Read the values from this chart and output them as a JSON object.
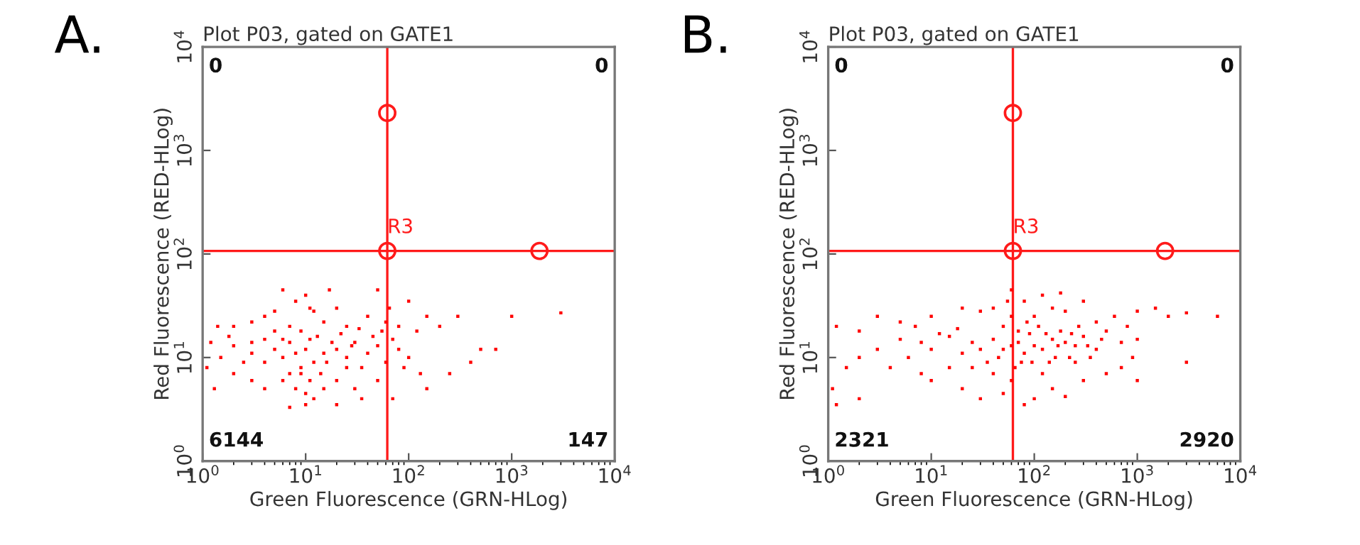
{
  "chart_data": [
    {
      "type": "scatter",
      "title": "Plot P03, gated on GATE1",
      "xlabel": "Green Fluorescence (GRN-HLog)",
      "ylabel": "Red Fluorescence (RED-HLog)",
      "log": "xy",
      "grid": false,
      "legend": false,
      "xlim": [
        1,
        10000
      ],
      "ylim": [
        1,
        10000
      ],
      "xticks": [
        {
          "value": 1,
          "label": "10$^{0}$"
        },
        {
          "value": 10,
          "label": "10$^{1}$"
        },
        {
          "value": 100,
          "label": "10$^{2}$"
        },
        {
          "value": 1000,
          "label": "10$^{3}$"
        },
        {
          "value": 10000,
          "label": "10$^{4}$"
        }
      ],
      "yticks": [
        {
          "value": 1,
          "label": "10$^{0}$"
        },
        {
          "value": 10,
          "label": "10$^{1}$"
        },
        {
          "value": 100,
          "label": "10$^{2}$"
        },
        {
          "value": 1000,
          "label": "10$^{3}$"
        },
        {
          "value": 10000,
          "label": "10$^{4}$"
        }
      ],
      "ref_lines": [
        {
          "axis": "x",
          "value": 62,
          "color": "#ff1a1a"
        },
        {
          "axis": "y",
          "value": 107,
          "color": "#ff1a1a"
        }
      ],
      "annotations": [
        "A.",
        "0",
        "0",
        "6144",
        "147",
        {
          "text": "R3",
          "x": 62,
          "y": 107
        }
      ],
      "series": [
        {
          "marker": "square",
          "color": "#ff0000",
          "x": [
            8,
            6,
            10,
            12,
            7,
            9,
            5,
            11,
            15,
            4,
            3,
            2,
            1.5,
            1.2,
            1.1,
            20,
            25,
            30,
            40,
            50,
            60,
            70,
            80,
            90,
            100,
            130,
            200,
            300,
            1000,
            3000,
            500,
            250,
            150,
            120,
            40,
            20,
            10,
            8,
            5,
            3,
            2,
            6,
            8,
            10,
            12,
            15,
            20,
            4,
            3,
            2,
            1.3,
            30,
            50,
            70,
            80,
            60,
            25,
            15,
            12,
            9,
            7,
            5,
            18,
            14,
            11,
            9,
            7,
            6,
            4,
            35,
            45,
            55,
            65,
            100,
            150,
            50,
            400,
            700,
            11,
            17,
            25,
            13,
            16,
            22,
            28,
            33,
            3,
            2.5,
            1.8,
            1.4,
            4,
            6,
            10,
            7,
            20,
            35
          ],
          "values": [
            11,
            10,
            12,
            9,
            14,
            8,
            12,
            15,
            11,
            9,
            11,
            13,
            10,
            14,
            8,
            12,
            10,
            14,
            11,
            13,
            9,
            15,
            12,
            8,
            10,
            7,
            20,
            25,
            25,
            27,
            12,
            7,
            5,
            18,
            25,
            30,
            40,
            35,
            28,
            22,
            20,
            6,
            5,
            4.5,
            4,
            5,
            6,
            5,
            6,
            7,
            5,
            5,
            6,
            4,
            20,
            22,
            20,
            22,
            28,
            18,
            20,
            18,
            14,
            7,
            6,
            7,
            7,
            15,
            15,
            8,
            16,
            18,
            30,
            35,
            25,
            45,
            9,
            12,
            30,
            45,
            8,
            16,
            9,
            17,
            13,
            19,
            14,
            9,
            16,
            20,
            25,
            45,
            3.5,
            3.3,
            3.5,
            4
          ]
        },
        {
          "marker": "circle",
          "color": "#ff1a1a",
          "x": [
            62,
            62,
            1860
          ],
          "values": [
            2300,
            107,
            107
          ]
        }
      ]
    },
    {
      "type": "scatter",
      "title": "Plot P03, gated on GATE1",
      "xlabel": "Green Fluorescence (GRN-HLog)",
      "ylabel": "Red Fluorescence (RED-HLog)",
      "log": "xy",
      "grid": false,
      "legend": false,
      "xlim": [
        1,
        10000
      ],
      "ylim": [
        1,
        10000
      ],
      "xticks": [
        {
          "value": 1,
          "label": "10$^{0}$"
        },
        {
          "value": 10,
          "label": "10$^{1}$"
        },
        {
          "value": 100,
          "label": "10$^{2}$"
        },
        {
          "value": 1000,
          "label": "10$^{3}$"
        },
        {
          "value": 10000,
          "label": "10$^{4}$"
        }
      ],
      "yticks": [
        {
          "value": 1,
          "label": "10$^{0}$"
        },
        {
          "value": 10,
          "label": "10$^{1}$"
        },
        {
          "value": 100,
          "label": "10$^{2}$"
        },
        {
          "value": 1000,
          "label": "10$^{3}$"
        },
        {
          "value": 10000,
          "label": "10$^{4}$"
        }
      ],
      "ref_lines": [
        {
          "axis": "x",
          "value": 62,
          "color": "#ff1a1a"
        },
        {
          "axis": "y",
          "value": 107,
          "color": "#ff1a1a"
        }
      ],
      "annotations": [
        "B.",
        "0",
        "0",
        "2321",
        "2920",
        {
          "text": "R3",
          "x": 62,
          "y": 107
        }
      ],
      "series": [
        {
          "marker": "square",
          "color": "#ff0000",
          "x": [
            60,
            50,
            70,
            80,
            40,
            100,
            120,
            150,
            200,
            250,
            300,
            400,
            500,
            30,
            25,
            20,
            15,
            10,
            8,
            6,
            5,
            4,
            3,
            2,
            1.5,
            1.2,
            1.1,
            2,
            1.2,
            10,
            20,
            30,
            50,
            80,
            100,
            150,
            200,
            300,
            500,
            700,
            60,
            40,
            120,
            250,
            15,
            8,
            60,
            40,
            80,
            120,
            150,
            200,
            300,
            100,
            30,
            20,
            10,
            7,
            5,
            3,
            1000,
            1500,
            2000,
            3000,
            6000,
            3000,
            1000,
            800,
            600,
            400,
            50,
            70,
            90,
            110,
            130,
            160,
            180,
            220,
            270,
            350,
            450,
            35,
            45,
            25,
            18,
            12,
            65,
            75,
            85,
            95,
            140,
            170,
            230,
            330,
            60,
            55,
            180,
            700,
            900,
            2,
            1000
          ],
          "values": [
            13,
            12,
            14,
            11,
            15,
            13,
            12,
            15,
            14,
            13,
            16,
            12,
            18,
            12,
            14,
            11,
            16,
            12,
            14,
            10,
            15,
            8,
            12,
            10,
            8,
            20,
            5,
            4,
            3.5,
            6,
            5,
            4,
            4.5,
            3.5,
            4,
            5,
            4.2,
            6,
            7,
            8,
            6,
            7,
            7,
            9,
            8,
            7,
            25,
            30,
            35,
            40,
            30,
            28,
            35,
            25,
            28,
            30,
            25,
            20,
            22,
            25,
            28,
            30,
            25,
            27,
            25,
            9,
            15,
            20,
            25,
            22,
            20,
            18,
            17,
            20,
            17,
            10,
            18,
            10,
            20,
            10,
            15,
            9,
            10,
            8,
            19,
            17,
            8,
            9,
            22,
            9,
            9,
            13,
            17,
            13,
            45,
            35,
            42,
            14,
            10,
            18,
            6
          ]
        },
        {
          "marker": "circle",
          "color": "#ff1a1a",
          "x": [
            62,
            62,
            1860
          ],
          "values": [
            2300,
            107,
            107
          ]
        }
      ]
    }
  ]
}
